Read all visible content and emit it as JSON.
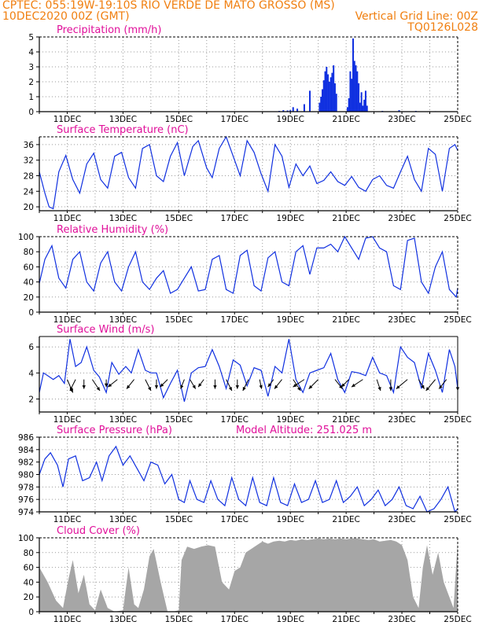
{
  "header": {
    "line1": "CPTEC:   055:19W-19:10S  RIO VERDE DE MATO GROSSO (MS)",
    "line2_left": "10DEC2020 00Z (GMT)",
    "line2_right": "Vertical Grid Line: 00Z",
    "line3_right": "TQ0126L028"
  },
  "colors": {
    "header": "#f07f10",
    "title": "#e0109a",
    "series": "#1030e0",
    "cloud": "#a6a6a6",
    "arrow": "#000000",
    "grid": "#9a9a9a"
  },
  "x_axis": {
    "start_day": 10,
    "end_day": 25,
    "tick_labels": [
      "11DEC",
      "13DEC",
      "15DEC",
      "17DEC",
      "19DEC",
      "21DEC",
      "23DEC",
      "25DEC"
    ]
  },
  "chart_data": [
    {
      "type": "bar",
      "title": "Precipitation  (mm/h)",
      "ylim": [
        0,
        5
      ],
      "yticks": [
        0,
        1,
        2,
        3,
        4,
        5
      ],
      "x_unit": "day of December 2020 (UTC)",
      "x": [
        18.6,
        18.75,
        18.9,
        19.0,
        19.1,
        19.25,
        19.5,
        19.7,
        20.05,
        20.1,
        20.15,
        20.2,
        20.25,
        20.3,
        20.35,
        20.4,
        20.45,
        20.5,
        20.55,
        20.6,
        20.65,
        21.05,
        21.1,
        21.15,
        21.2,
        21.25,
        21.3,
        21.35,
        21.4,
        21.45,
        21.5,
        21.55,
        21.6,
        21.65,
        21.7,
        21.75,
        22.3,
        22.9,
        23.5,
        24.2
      ],
      "values": [
        0.05,
        0.1,
        0.08,
        0.1,
        0.3,
        0.2,
        0.5,
        1.4,
        0.6,
        1.0,
        1.5,
        2.1,
        2.7,
        3.0,
        2.5,
        2.0,
        2.3,
        2.6,
        3.1,
        1.9,
        1.2,
        0.3,
        0.9,
        2.7,
        2.2,
        4.9,
        3.4,
        3.1,
        2.7,
        1.9,
        0.6,
        1.3,
        0.4,
        0.8,
        1.4,
        0.4,
        0.05,
        0.1,
        0.05,
        0.03
      ]
    },
    {
      "type": "line",
      "title": "Surface Temperature (nC)",
      "ylim": [
        19,
        38
      ],
      "yticks": [
        20,
        24,
        28,
        32,
        36
      ],
      "x": [
        10.0,
        10.2,
        10.35,
        10.5,
        10.7,
        10.95,
        11.2,
        11.45,
        11.7,
        11.95,
        12.2,
        12.45,
        12.7,
        12.95,
        13.2,
        13.45,
        13.7,
        13.95,
        14.2,
        14.45,
        14.7,
        14.95,
        15.2,
        15.5,
        15.7,
        16.0,
        16.2,
        16.45,
        16.7,
        16.95,
        17.2,
        17.45,
        17.7,
        17.95,
        18.2,
        18.45,
        18.7,
        18.95,
        19.2,
        19.45,
        19.7,
        19.95,
        20.2,
        20.45,
        20.7,
        20.95,
        21.2,
        21.45,
        21.7,
        21.95,
        22.2,
        22.45,
        22.7,
        22.95,
        23.2,
        23.45,
        23.7,
        23.95,
        24.2,
        24.45,
        24.7,
        24.9,
        25.0
      ],
      "values": [
        29.0,
        23.5,
        20.0,
        19.5,
        29.0,
        33.2,
        27.0,
        23.5,
        31.0,
        33.8,
        27.0,
        24.8,
        33.0,
        34.0,
        27.5,
        24.8,
        35.0,
        36.0,
        28.0,
        26.5,
        33.0,
        36.5,
        28.0,
        35.5,
        37.0,
        30.0,
        27.5,
        35.0,
        38.0,
        33.0,
        28.0,
        37.0,
        34.0,
        28.5,
        24.0,
        36.0,
        33.0,
        25.0,
        31.0,
        28.0,
        30.5,
        26.0,
        26.8,
        29.0,
        26.5,
        25.5,
        27.8,
        25.0,
        24.0,
        27.0,
        28.0,
        25.5,
        24.8,
        29.0,
        33.0,
        27.0,
        24.0,
        35.0,
        33.5,
        24.0,
        35.0,
        36.0,
        34.5
      ]
    },
    {
      "type": "line",
      "title": "Relative Humidity  (%)",
      "ylim": [
        0,
        100
      ],
      "yticks": [
        0,
        20,
        40,
        60,
        80,
        100
      ],
      "x": [
        10.0,
        10.2,
        10.45,
        10.7,
        10.95,
        11.2,
        11.45,
        11.7,
        11.95,
        12.2,
        12.45,
        12.7,
        12.95,
        13.2,
        13.45,
        13.7,
        13.95,
        14.2,
        14.45,
        14.7,
        14.95,
        15.2,
        15.45,
        15.7,
        15.95,
        16.2,
        16.45,
        16.7,
        16.95,
        17.2,
        17.45,
        17.7,
        17.95,
        18.2,
        18.45,
        18.7,
        18.95,
        19.2,
        19.45,
        19.7,
        19.95,
        20.2,
        20.45,
        20.7,
        20.95,
        21.2,
        21.45,
        21.7,
        21.95,
        22.2,
        22.45,
        22.7,
        22.95,
        23.2,
        23.45,
        23.7,
        23.95,
        24.2,
        24.45,
        24.7,
        24.95,
        25.0
      ],
      "values": [
        38.0,
        70.0,
        88.0,
        45.0,
        32.0,
        70.0,
        80.0,
        40.0,
        28.0,
        65.0,
        80.0,
        40.0,
        28.0,
        60.0,
        80.0,
        40.0,
        30.0,
        45.0,
        55.0,
        25.0,
        30.0,
        45.0,
        60.0,
        28.0,
        30.0,
        70.0,
        75.0,
        30.0,
        25.0,
        75.0,
        82.0,
        35.0,
        28.0,
        72.0,
        80.0,
        40.0,
        35.0,
        80.0,
        88.0,
        50.0,
        85.0,
        85.0,
        90.0,
        80.0,
        100.0,
        85.0,
        70.0,
        98.0,
        100.0,
        85.0,
        80.0,
        35.0,
        30.0,
        95.0,
        98.0,
        40.0,
        25.0,
        60.0,
        80.0,
        30.0,
        20.0,
        32.0
      ]
    },
    {
      "type": "line",
      "title": "Surface Wind  (m/s)",
      "ylim": [
        1,
        6.8
      ],
      "yticks": [
        2,
        4,
        6
      ],
      "x": [
        10.0,
        10.15,
        10.3,
        10.5,
        10.7,
        10.9,
        11.1,
        11.3,
        11.5,
        11.7,
        11.95,
        12.15,
        12.4,
        12.6,
        12.85,
        13.1,
        13.3,
        13.55,
        13.8,
        14.0,
        14.2,
        14.45,
        14.7,
        14.95,
        15.2,
        15.45,
        15.7,
        15.95,
        16.2,
        16.45,
        16.7,
        16.95,
        17.2,
        17.45,
        17.7,
        17.95,
        18.2,
        18.45,
        18.7,
        18.95,
        19.2,
        19.45,
        19.7,
        19.95,
        20.2,
        20.45,
        20.7,
        20.95,
        21.2,
        21.45,
        21.7,
        21.95,
        22.2,
        22.45,
        22.7,
        22.95,
        23.2,
        23.45,
        23.7,
        23.95,
        24.2,
        24.45,
        24.7,
        24.9,
        25.0
      ],
      "values": [
        2.5,
        4.0,
        3.8,
        3.5,
        3.8,
        3.2,
        6.6,
        4.5,
        4.8,
        6.0,
        4.2,
        3.7,
        2.5,
        4.8,
        3.9,
        4.5,
        4.0,
        5.8,
        4.2,
        4.0,
        4.0,
        2.1,
        3.2,
        4.2,
        1.8,
        4.0,
        4.4,
        4.5,
        5.8,
        4.5,
        2.8,
        5.0,
        4.6,
        3.0,
        4.4,
        4.2,
        2.2,
        4.5,
        4.0,
        6.6,
        3.5,
        2.5,
        4.0,
        4.2,
        4.4,
        5.5,
        3.5,
        2.5,
        4.1,
        4.0,
        3.8,
        5.2,
        4.0,
        3.8,
        2.5,
        6.0,
        5.2,
        4.8,
        2.8,
        5.5,
        4.2,
        2.5,
        5.8,
        4.5,
        2.8
      ]
    },
    {
      "type": "vector",
      "title": "",
      "x": [
        11.0,
        11.3,
        11.6,
        11.9,
        12.4,
        12.8,
        13.4,
        13.8,
        14.2,
        14.6,
        15.2,
        15.4,
        15.9,
        16.3,
        16.7,
        17.1,
        17.5,
        17.9,
        18.4,
        18.7,
        19.1,
        19.5,
        20.0,
        20.6,
        21.1,
        21.6,
        22.1,
        22.6,
        23.2,
        23.6,
        24.2,
        24.6,
        25.0
      ],
      "u": [
        0.3,
        -0.3,
        0.0,
        0.4,
        0.0,
        -0.5,
        -0.4,
        0.3,
        0.0,
        -0.4,
        -0.2,
        0.3,
        -0.3,
        0.0,
        0.3,
        0.0,
        -0.3,
        0.1,
        -0.3,
        -0.4,
        0.4,
        -0.6,
        -0.5,
        0.4,
        -0.4,
        -0.6,
        0.2,
        0.0,
        -0.6,
        0.3,
        -0.5,
        -0.4,
        0.0
      ],
      "v": [
        -0.7,
        -0.6,
        -0.5,
        -0.6,
        -0.4,
        -0.4,
        -0.5,
        -0.6,
        -0.5,
        -0.4,
        -0.5,
        -0.5,
        -0.4,
        -0.5,
        -0.6,
        -0.5,
        -0.6,
        -0.5,
        -0.4,
        -0.5,
        -0.6,
        -0.4,
        -0.5,
        -0.5,
        -0.4,
        -0.4,
        -0.6,
        -0.6,
        -0.5,
        -0.5,
        -0.6,
        -0.5,
        -0.6
      ]
    },
    {
      "type": "line",
      "title": "Surface Pressure  (hPa)",
      "subtitle": "Model Altitude: 251.025 m",
      "ylim": [
        974,
        986
      ],
      "yticks": [
        974,
        976,
        978,
        980,
        982,
        984,
        986
      ],
      "x": [
        10.0,
        10.2,
        10.4,
        10.65,
        10.85,
        11.05,
        11.3,
        11.55,
        11.8,
        12.05,
        12.25,
        12.5,
        12.75,
        13.0,
        13.25,
        13.5,
        13.75,
        14.0,
        14.25,
        14.5,
        14.75,
        15.0,
        15.2,
        15.4,
        15.65,
        15.9,
        16.15,
        16.4,
        16.65,
        16.9,
        17.15,
        17.4,
        17.65,
        17.9,
        18.15,
        18.4,
        18.65,
        18.9,
        19.15,
        19.4,
        19.65,
        19.9,
        20.15,
        20.4,
        20.65,
        20.9,
        21.15,
        21.4,
        21.65,
        21.9,
        22.15,
        22.4,
        22.65,
        22.9,
        23.15,
        23.4,
        23.65,
        23.9,
        24.15,
        24.4,
        24.65,
        24.9,
        25.0
      ],
      "values": [
        980.0,
        982.5,
        983.5,
        981.5,
        978.0,
        982.5,
        983.0,
        979.0,
        979.5,
        982.0,
        979.0,
        983.0,
        984.5,
        981.5,
        983.0,
        981.0,
        979.0,
        982.0,
        981.5,
        978.5,
        980.0,
        976.0,
        975.5,
        979.0,
        976.0,
        975.5,
        979.0,
        976.0,
        975.0,
        979.5,
        976.0,
        975.0,
        979.5,
        975.5,
        975.0,
        979.5,
        975.5,
        975.0,
        978.5,
        975.5,
        976.0,
        979.0,
        975.5,
        976.0,
        979.0,
        975.5,
        976.5,
        978.0,
        975.0,
        976.0,
        977.5,
        975.0,
        976.0,
        978.0,
        975.0,
        974.5,
        976.5,
        974.0,
        974.5,
        976.0,
        978.0,
        974.0,
        974.5
      ]
    },
    {
      "type": "area",
      "title": "Cloud Cover  (%)",
      "ylim": [
        0,
        100
      ],
      "yticks": [
        0,
        20,
        40,
        60,
        80,
        100
      ],
      "x": [
        10.0,
        10.3,
        10.6,
        10.85,
        11.05,
        11.2,
        11.4,
        11.6,
        11.8,
        12.0,
        12.2,
        12.45,
        12.7,
        13.0,
        13.2,
        13.4,
        13.55,
        13.75,
        13.95,
        14.1,
        14.35,
        14.6,
        14.8,
        15.0,
        15.1,
        15.3,
        15.55,
        15.8,
        16.05,
        16.3,
        16.55,
        16.8,
        17.0,
        17.2,
        17.4,
        17.6,
        17.8,
        18.0,
        18.2,
        18.4,
        18.6,
        18.8,
        19.0,
        19.2,
        19.4,
        19.6,
        19.8,
        20.0,
        20.2,
        20.4,
        20.6,
        20.8,
        21.0,
        21.2,
        21.4,
        21.6,
        21.8,
        22.0,
        22.2,
        22.4,
        22.6,
        22.8,
        23.0,
        23.2,
        23.4,
        23.6,
        23.75,
        23.9,
        24.1,
        24.3,
        24.5,
        24.7,
        24.85,
        25.0
      ],
      "values": [
        60.0,
        40.0,
        15.0,
        5.0,
        45.0,
        70.0,
        25.0,
        50.0,
        10.0,
        2.0,
        30.0,
        5.0,
        0.0,
        2.0,
        60.0,
        10.0,
        5.0,
        30.0,
        75.0,
        85.0,
        40.0,
        0.0,
        0.0,
        2.0,
        70.0,
        88.0,
        85.0,
        88.0,
        90.0,
        88.0,
        40.0,
        30.0,
        55.0,
        60.0,
        80.0,
        85.0,
        90.0,
        95.0,
        92.0,
        95.0,
        96.0,
        95.0,
        97.0,
        96.0,
        98.0,
        97.0,
        98.0,
        99.0,
        98.0,
        99.0,
        98.0,
        99.0,
        98.0,
        99.0,
        99.0,
        98.0,
        97.0,
        98.0,
        95.0,
        96.0,
        97.0,
        95.0,
        90.0,
        70.0,
        20.0,
        5.0,
        60.0,
        90.0,
        50.0,
        80.0,
        40.0,
        20.0,
        5.0,
        95.0
      ]
    }
  ]
}
